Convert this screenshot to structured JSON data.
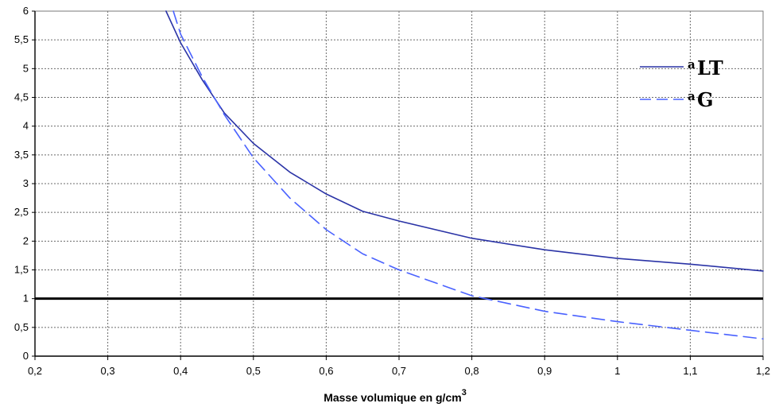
{
  "chart_data": {
    "type": "line",
    "xlabel": "Masse volumique en g/cm",
    "xlabel_superscript": "3",
    "xlim": [
      0.2,
      1.2
    ],
    "ylim": [
      0,
      6
    ],
    "x_ticks": [
      0.2,
      0.3,
      0.4,
      0.5,
      0.6,
      0.7,
      0.8,
      0.9,
      1,
      1.1,
      1.2
    ],
    "y_ticks": [
      0,
      0.5,
      1,
      1.5,
      2,
      2.5,
      3,
      3.5,
      4,
      4.5,
      5,
      5.5,
      6
    ],
    "x_tick_labels": [
      "0,2",
      "0,3",
      "0,4",
      "0,5",
      "0,6",
      "0,7",
      "0,8",
      "0,9",
      "1",
      "1,1",
      "1,2"
    ],
    "y_tick_labels": [
      "0",
      "0,5",
      "1",
      "1,5",
      "2",
      "2,5",
      "3",
      "3,5",
      "4",
      "4,5",
      "5",
      "5,5",
      "6"
    ],
    "grid": true,
    "legend_position": "right",
    "reference_line": {
      "y": 1,
      "color": "#000000"
    },
    "series": [
      {
        "name": "LT",
        "name_prefix": "a",
        "style": "solid",
        "color": "#2a33a6",
        "x": [
          0.38,
          0.4,
          0.43,
          0.46,
          0.5,
          0.55,
          0.6,
          0.65,
          0.7,
          0.8,
          0.9,
          1,
          1.1,
          1.2
        ],
        "y": [
          6,
          5.45,
          4.8,
          4.23,
          3.7,
          3.2,
          2.82,
          2.52,
          2.35,
          2.05,
          1.85,
          1.7,
          1.6,
          1.48
        ]
      },
      {
        "name": "G",
        "name_prefix": "a",
        "style": "dashed",
        "color": "#4a62ff",
        "x": [
          0.39,
          0.4,
          0.43,
          0.46,
          0.5,
          0.55,
          0.6,
          0.65,
          0.7,
          0.8,
          0.9,
          1,
          1.1,
          1.2
        ],
        "y": [
          6,
          5.6,
          4.85,
          4.2,
          3.45,
          2.75,
          2.2,
          1.78,
          1.5,
          1.05,
          0.78,
          0.6,
          0.45,
          0.3
        ]
      }
    ]
  }
}
